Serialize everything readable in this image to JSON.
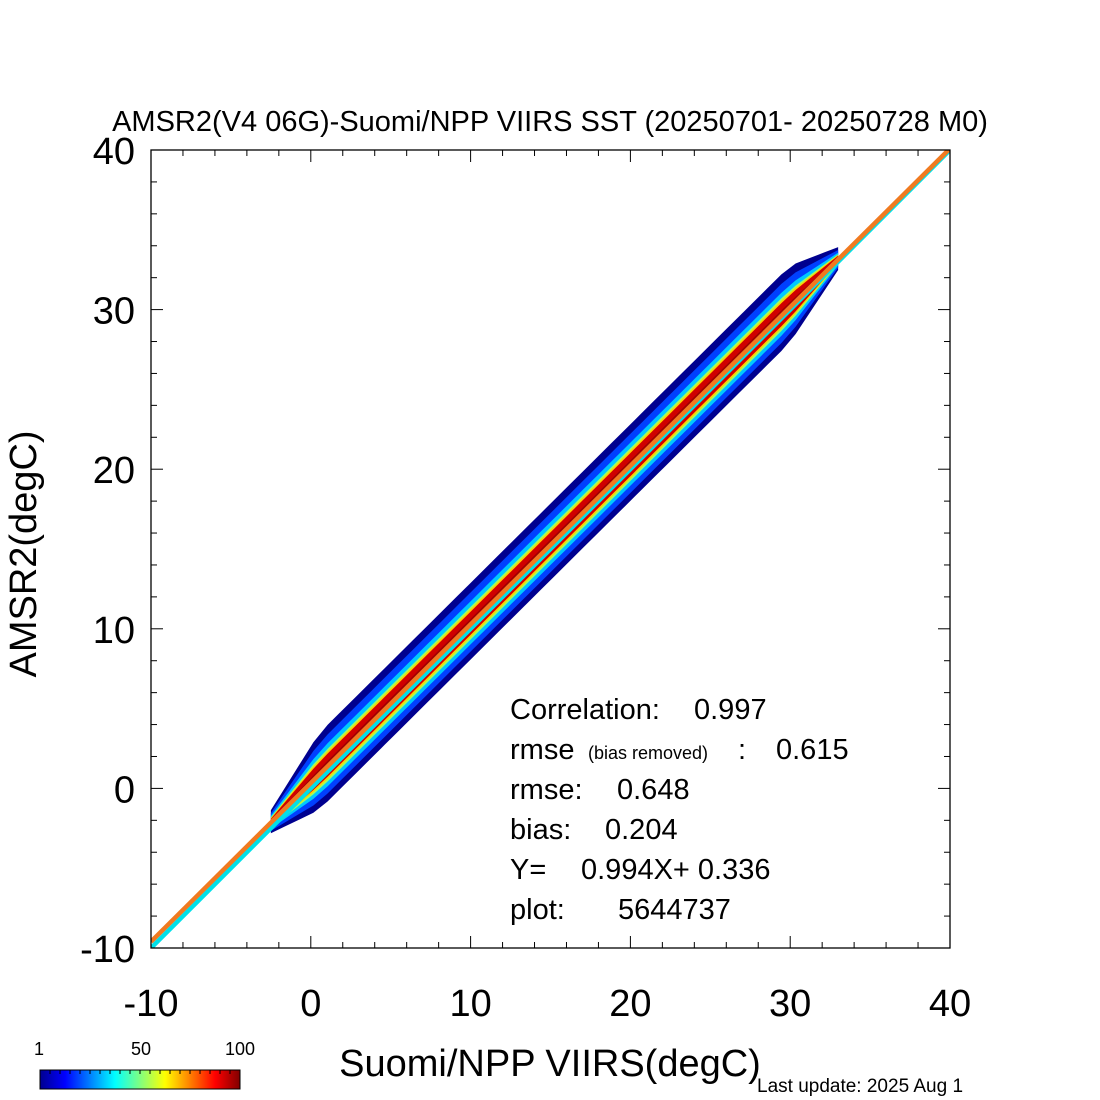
{
  "chart_data": {
    "type": "heatmap",
    "title": "AMSR2(V4 06G)-Suomi/NPP VIIRS SST (20250701- 20250728 M0)",
    "xlabel": "Suomi/NPP VIIRS(degC)",
    "ylabel": "AMSR2(degC)",
    "xlim": [
      -10,
      40
    ],
    "ylim": [
      -10,
      40
    ],
    "x_ticks": [
      "-10",
      "0",
      "10",
      "20",
      "30",
      "40"
    ],
    "y_ticks": [
      "-10",
      "0",
      "10",
      "20",
      "30",
      "40"
    ],
    "lines": [
      {
        "name": "one-to-one",
        "slope": 1.0,
        "intercept": 0.0,
        "color": "#00e0e8"
      },
      {
        "name": "regression",
        "slope": 0.994,
        "intercept": 0.336,
        "color": "#f07a20"
      }
    ],
    "density_ridge": {
      "x_range": [
        -2.5,
        33
      ],
      "slope": 0.994,
      "intercept": 0.336
    },
    "stats": {
      "correlation_label": "Correlation:",
      "correlation": "0.997",
      "rmse_br_label": "rmse",
      "rmse_br_sub": "(bias removed)",
      "rmse_br_colon": ":",
      "rmse_br": "0.615",
      "rmse_label": "rmse:",
      "rmse": "0.648",
      "bias_label": "bias:",
      "bias": "0.204",
      "fit_label": "Y=",
      "fit": "0.994X+  0.336",
      "plot_label": "plot:",
      "plot": "5644737"
    },
    "colorbar": {
      "min_label": "1",
      "mid_label": "50",
      "max_label": "100",
      "colors": [
        "#00008f",
        "#0000ff",
        "#0080ff",
        "#00ffff",
        "#80ff80",
        "#ffff00",
        "#ff8000",
        "#ff0000",
        "#800000"
      ]
    }
  },
  "footer": {
    "last_update": "Last update: 2025 Aug  1"
  }
}
